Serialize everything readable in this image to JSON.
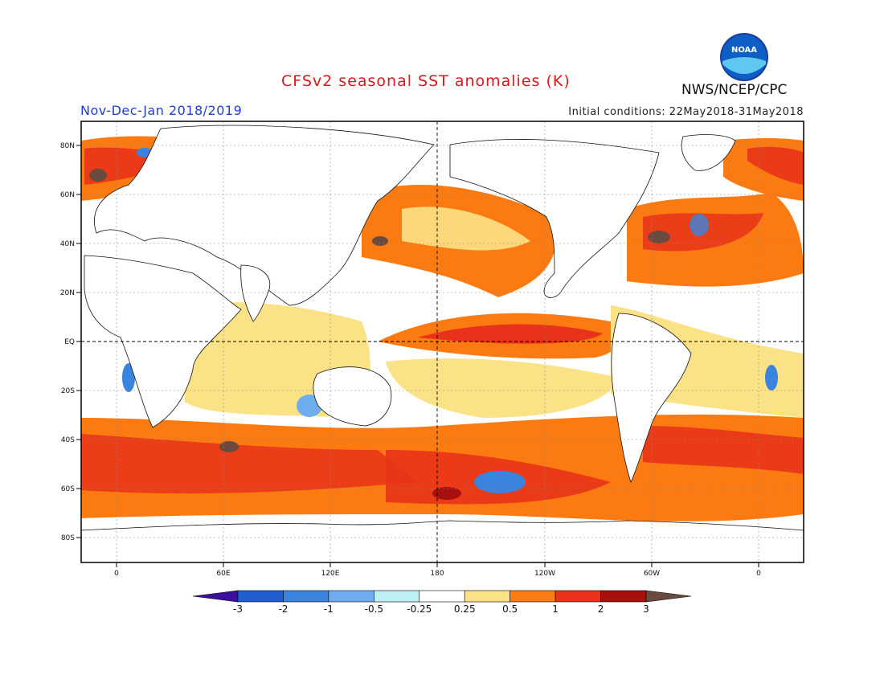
{
  "header": {
    "title": "CFSv2 seasonal SST anomalies (K)",
    "period": "Nov-Dec-Jan 2018/2019",
    "initial_conditions": "Initial conditions: 22May2018-31May2018",
    "agency": "NWS/NCEP/CPC",
    "logo_text": "NOAA"
  },
  "axes": {
    "lat_labels": [
      "80N",
      "60N",
      "40N",
      "20N",
      "EQ",
      "20S",
      "40S",
      "60S",
      "80S"
    ],
    "lon_labels": [
      "0",
      "60E",
      "120E",
      "180",
      "120W",
      "60W",
      "0"
    ]
  },
  "colorbar": {
    "labels": [
      "-3",
      "-2",
      "-1",
      "-0.5",
      "-0.25",
      "0.25",
      "0.5",
      "1",
      "2",
      "3"
    ],
    "colors": [
      "#3d0f9e",
      "#1f5fd0",
      "#3a84e0",
      "#6eaef0",
      "#bff0f5",
      "#ffffff",
      "#fce287",
      "#fb7b12",
      "#e8331a",
      "#a8100e",
      "#6b4a40"
    ]
  }
}
